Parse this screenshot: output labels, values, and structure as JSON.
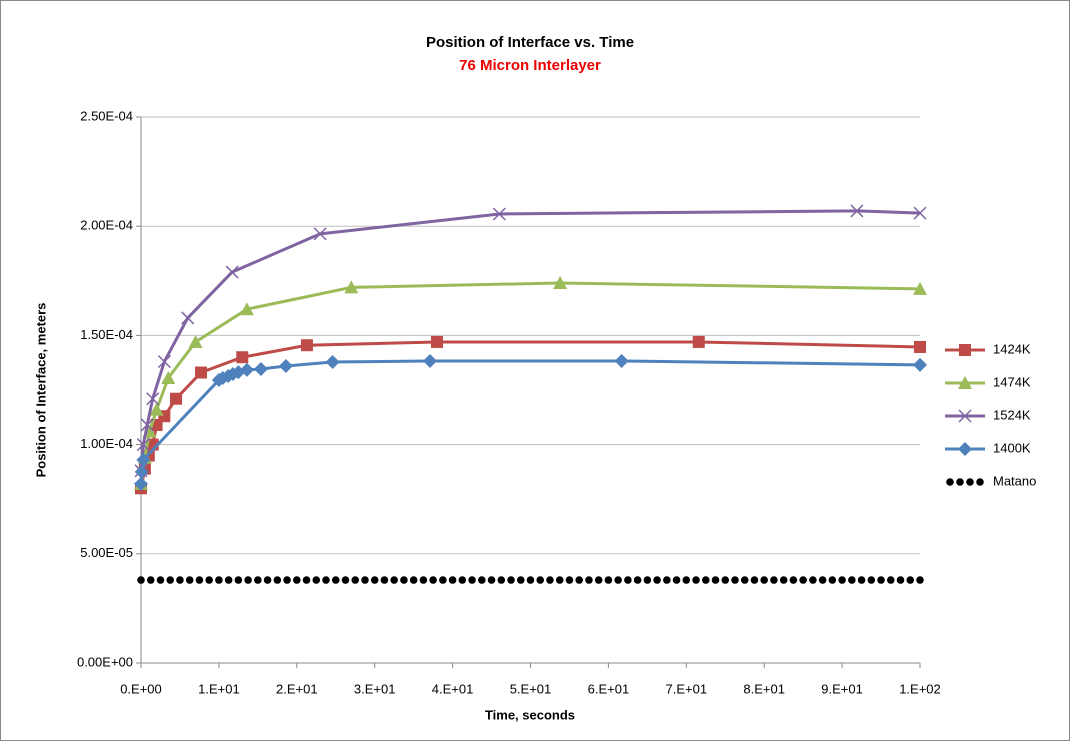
{
  "chart_data": {
    "type": "line",
    "title": "Position of Interface vs. Time",
    "subtitle": "76 Micron Interlayer",
    "x_label": "Time, seconds",
    "y_label": "Position of Interface, meters",
    "xlim": [
      0,
      100
    ],
    "ylim": [
      0,
      0.00025
    ],
    "xticks": [
      {
        "value": 0,
        "label": "0.E+00"
      },
      {
        "value": 10,
        "label": "1.E+01"
      },
      {
        "value": 20,
        "label": "2.E+01"
      },
      {
        "value": 30,
        "label": "3.E+01"
      },
      {
        "value": 40,
        "label": "4.E+01"
      },
      {
        "value": 50,
        "label": "5.E+01"
      },
      {
        "value": 60,
        "label": "6.E+01"
      },
      {
        "value": 70,
        "label": "7.E+01"
      },
      {
        "value": 80,
        "label": "8.E+01"
      },
      {
        "value": 90,
        "label": "9.E+01"
      },
      {
        "value": 100,
        "label": "1.E+02"
      }
    ],
    "yticks": [
      {
        "value": 0,
        "label": "0.00E+00"
      },
      {
        "value": 5e-05,
        "label": "5.00E-05"
      },
      {
        "value": 0.0001,
        "label": "1.00E-04"
      },
      {
        "value": 0.00015,
        "label": "1.50E-04"
      },
      {
        "value": 0.0002,
        "label": "2.00E-04"
      },
      {
        "value": 0.00025,
        "label": "2.50E-04"
      }
    ],
    "grid": true,
    "legend": "right",
    "series": [
      {
        "name": "1424K",
        "color": "#be4b48",
        "marker": "square",
        "line": true,
        "x": [
          0,
          0.5,
          1,
          1.5,
          2,
          3,
          4.5,
          7.7,
          13,
          21.3,
          38,
          71.6,
          100
        ],
        "values": [
          8e-05,
          8.9e-05,
          9.5e-05,
          0.0001,
          0.000109,
          0.000113,
          0.000121,
          0.000133,
          0.00014,
          0.0001455,
          0.000147,
          0.000147,
          0.0001447
        ]
      },
      {
        "name": "1474K",
        "color": "#9bbb59",
        "marker": "triangle",
        "line": true,
        "x": [
          0,
          0.5,
          1.1,
          2,
          3.5,
          7,
          13.6,
          27,
          53.8,
          100
        ],
        "values": [
          8.2e-05,
          9.4e-05,
          0.000106,
          0.000116,
          0.0001305,
          0.000147,
          0.000162,
          0.000172,
          0.000174,
          0.0001713
        ]
      },
      {
        "name": "1524K",
        "color": "#8064a2",
        "marker": "x",
        "line": true,
        "x": [
          0,
          0.3,
          0.8,
          1.5,
          3,
          6,
          11.7,
          23,
          46,
          91.9,
          100
        ],
        "values": [
          8.8e-05,
          0.0001,
          0.000109,
          0.000121,
          0.000138,
          0.000158,
          0.000179,
          0.0001965,
          0.0002056,
          0.000207,
          0.000206
        ]
      },
      {
        "name": "1400K",
        "color": "#4f81bd",
        "marker": "diamond",
        "line": true,
        "x": [
          0,
          0.1,
          0.3,
          10,
          10.5,
          11.2,
          11.8,
          12.5,
          13.6,
          15.4,
          18.6,
          24.6,
          37.1,
          61.7,
          100
        ],
        "values": [
          8.2e-05,
          8.75e-05,
          9.3e-05,
          0.0001296,
          0.0001305,
          0.0001314,
          0.0001323,
          0.0001332,
          0.0001342,
          0.0001346,
          0.000136,
          0.0001378,
          0.0001383,
          0.0001383,
          0.0001365
        ]
      },
      {
        "name": "Matano",
        "color": "#000000",
        "marker": "circle",
        "line": false,
        "x": [
          0,
          1.25,
          2.5,
          3.75,
          5,
          6.25,
          7.5,
          8.75,
          10,
          11.25,
          12.5,
          13.75,
          15,
          16.25,
          17.5,
          18.75,
          20,
          21.25,
          22.5,
          23.75,
          25,
          26.25,
          27.5,
          28.75,
          30,
          31.25,
          32.5,
          33.75,
          35,
          36.25,
          37.5,
          38.75,
          40,
          41.25,
          42.5,
          43.75,
          45,
          46.25,
          47.5,
          48.75,
          50,
          51.25,
          52.5,
          53.75,
          55,
          56.25,
          57.5,
          58.75,
          60,
          61.25,
          62.5,
          63.75,
          65,
          66.25,
          67.5,
          68.75,
          70,
          71.25,
          72.5,
          73.75,
          75,
          76.25,
          77.5,
          78.75,
          80,
          81.25,
          82.5,
          83.75,
          85,
          86.25,
          87.5,
          88.75,
          90,
          91.25,
          92.5,
          93.75,
          95,
          96.25,
          97.5,
          98.75,
          100
        ],
        "values": [
          3.8e-05,
          3.8e-05,
          3.8e-05,
          3.8e-05,
          3.8e-05,
          3.8e-05,
          3.8e-05,
          3.8e-05,
          3.8e-05,
          3.8e-05,
          3.8e-05,
          3.8e-05,
          3.8e-05,
          3.8e-05,
          3.8e-05,
          3.8e-05,
          3.8e-05,
          3.8e-05,
          3.8e-05,
          3.8e-05,
          3.8e-05,
          3.8e-05,
          3.8e-05,
          3.8e-05,
          3.8e-05,
          3.8e-05,
          3.8e-05,
          3.8e-05,
          3.8e-05,
          3.8e-05,
          3.8e-05,
          3.8e-05,
          3.8e-05,
          3.8e-05,
          3.8e-05,
          3.8e-05,
          3.8e-05,
          3.8e-05,
          3.8e-05,
          3.8e-05,
          3.8e-05,
          3.8e-05,
          3.8e-05,
          3.8e-05,
          3.8e-05,
          3.8e-05,
          3.8e-05,
          3.8e-05,
          3.8e-05,
          3.8e-05,
          3.8e-05,
          3.8e-05,
          3.8e-05,
          3.8e-05,
          3.8e-05,
          3.8e-05,
          3.8e-05,
          3.8e-05,
          3.8e-05,
          3.8e-05,
          3.8e-05,
          3.8e-05,
          3.8e-05,
          3.8e-05,
          3.8e-05,
          3.8e-05,
          3.8e-05,
          3.8e-05,
          3.8e-05,
          3.8e-05,
          3.8e-05,
          3.8e-05,
          3.8e-05,
          3.8e-05,
          3.8e-05,
          3.8e-05,
          3.8e-05,
          3.8e-05,
          3.8e-05,
          3.8e-05,
          3.8e-05
        ]
      }
    ]
  }
}
